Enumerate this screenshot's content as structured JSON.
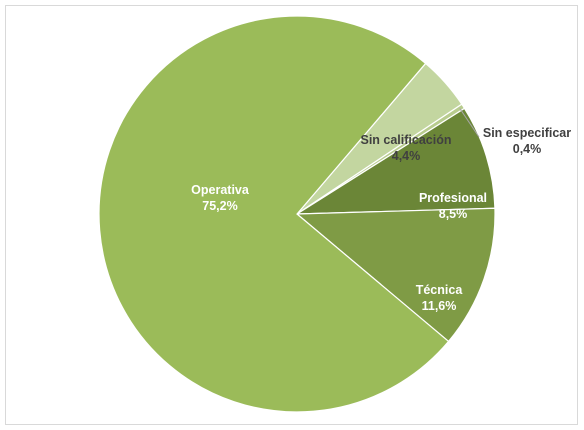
{
  "chart_data": {
    "type": "pie",
    "slices": [
      {
        "category": "Operativa",
        "percent_label": "75,2%",
        "value": 75.2,
        "color": "#9bbb59"
      },
      {
        "category": "Técnica",
        "percent_label": "11,6%",
        "value": 11.6,
        "color": "#7f9b45"
      },
      {
        "category": "Profesional",
        "percent_label": "8,5%",
        "value": 8.5,
        "color": "#6b8637"
      },
      {
        "category": "Sin especificar",
        "percent_label": "0,4%",
        "value": 0.4,
        "color": "#b8cc8e"
      },
      {
        "category": "Sin calificación",
        "percent_label": "4,4%",
        "value": 4.4,
        "color": "#c3d6a0"
      }
    ],
    "legend": "none",
    "data_labels": "category and percentage"
  }
}
